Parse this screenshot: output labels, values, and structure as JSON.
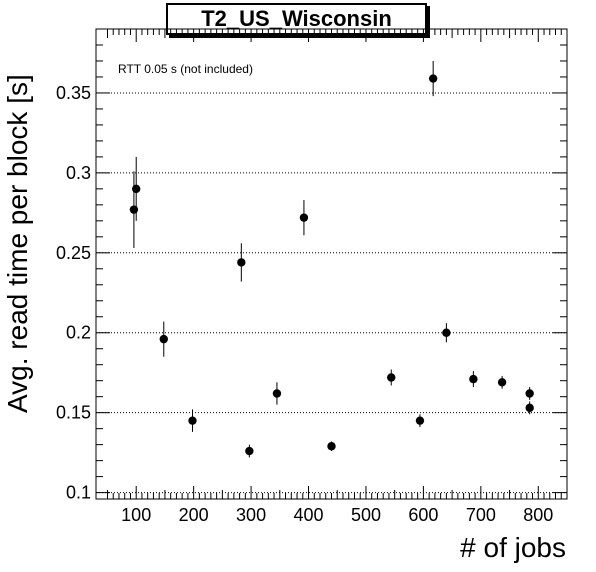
{
  "chart_data": {
    "type": "scatter",
    "title": "T2_US_Wisconsin",
    "annotation": "RTT 0.05 s (not included)",
    "xlabel": "# of jobs",
    "ylabel": "Avg. read time per block [s]",
    "xlim": [
      30,
      850
    ],
    "ylim": [
      0.096,
      0.39
    ],
    "x_ticks": [
      100,
      200,
      300,
      400,
      500,
      600,
      700,
      800
    ],
    "x_tick_labels": [
      "100",
      "200",
      "300",
      "400",
      "500",
      "600",
      "700",
      "800"
    ],
    "y_ticks": [
      0.1,
      0.15,
      0.2,
      0.25,
      0.3,
      0.35
    ],
    "y_tick_labels": [
      "0.1",
      "0.15",
      "0.2",
      "0.25",
      "0.3",
      "0.35"
    ],
    "horizontal_grid": true,
    "vertical_grid": false,
    "marker_color": "#000000",
    "points": [
      {
        "x": 96,
        "y": 0.277,
        "err": 0.024
      },
      {
        "x": 100,
        "y": 0.29,
        "err": 0.02
      },
      {
        "x": 148,
        "y": 0.196,
        "err": 0.011
      },
      {
        "x": 198,
        "y": 0.145,
        "err": 0.007
      },
      {
        "x": 283,
        "y": 0.244,
        "err": 0.012
      },
      {
        "x": 297,
        "y": 0.126,
        "err": 0.004
      },
      {
        "x": 345,
        "y": 0.162,
        "err": 0.007
      },
      {
        "x": 392,
        "y": 0.272,
        "err": 0.011
      },
      {
        "x": 440,
        "y": 0.129,
        "err": 0.003
      },
      {
        "x": 544,
        "y": 0.172,
        "err": 0.005
      },
      {
        "x": 594,
        "y": 0.145,
        "err": 0.004
      },
      {
        "x": 617,
        "y": 0.359,
        "err": 0.011
      },
      {
        "x": 640,
        "y": 0.2,
        "err": 0.006
      },
      {
        "x": 687,
        "y": 0.171,
        "err": 0.005
      },
      {
        "x": 737,
        "y": 0.169,
        "err": 0.004
      },
      {
        "x": 785,
        "y": 0.162,
        "err": 0.004
      },
      {
        "x": 785,
        "y": 0.153,
        "err": 0.004
      }
    ]
  }
}
